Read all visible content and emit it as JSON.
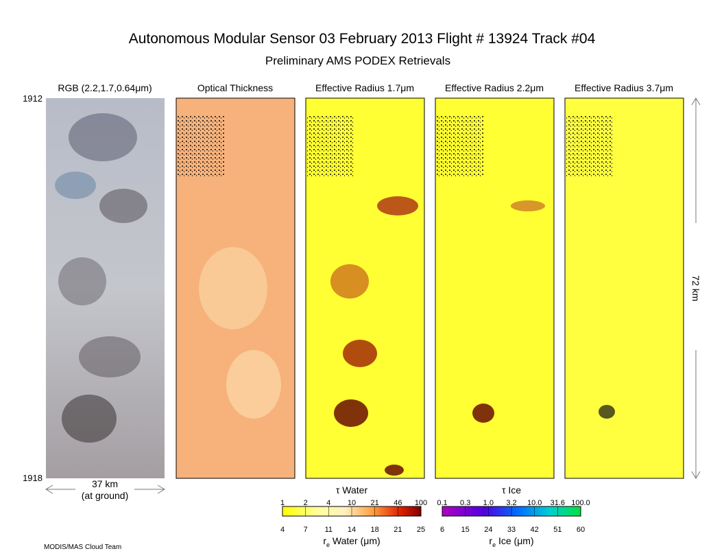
{
  "title": "Autonomous Modular Sensor  03 February 2013  Flight # 13924 Track #04",
  "subtitle": "Preliminary AMS PODEX Retrievals",
  "panels": [
    {
      "label": "RGB (2.2,1.7,0.64μm)"
    },
    {
      "label": "Optical Thickness"
    },
    {
      "label": "Effective Radius 1.7μm"
    },
    {
      "label": "Effective Radius 2.2μm"
    },
    {
      "label": "Effective Radius 3.7μm"
    }
  ],
  "scan_start": "1912",
  "scan_end": "1918",
  "width_label": "37 km",
  "width_note": "(at ground)",
  "length_label": "72 km",
  "colorbars": [
    {
      "top_label": "τ Water",
      "top_ticks": [
        "1",
        "2",
        "4",
        "10",
        "21",
        "46",
        "100"
      ],
      "bottom_ticks": [
        "4",
        "7",
        "11",
        "14",
        "18",
        "21",
        "25"
      ],
      "bottom_label": {
        "symbol": "r",
        "sub": "e",
        "text": " Water (μm)"
      }
    },
    {
      "top_label": "τ Ice",
      "top_ticks": [
        "0.1",
        "0.3",
        "1.0",
        "3.2",
        "10.0",
        "31.6",
        "100.0"
      ],
      "bottom_ticks": [
        "6",
        "15",
        "24",
        "33",
        "42",
        "51",
        "60"
      ],
      "bottom_label": {
        "symbol": "r",
        "sub": "e",
        "text": " Ice (μm)"
      }
    }
  ],
  "credit": "MODIS/MAS Cloud Team"
}
